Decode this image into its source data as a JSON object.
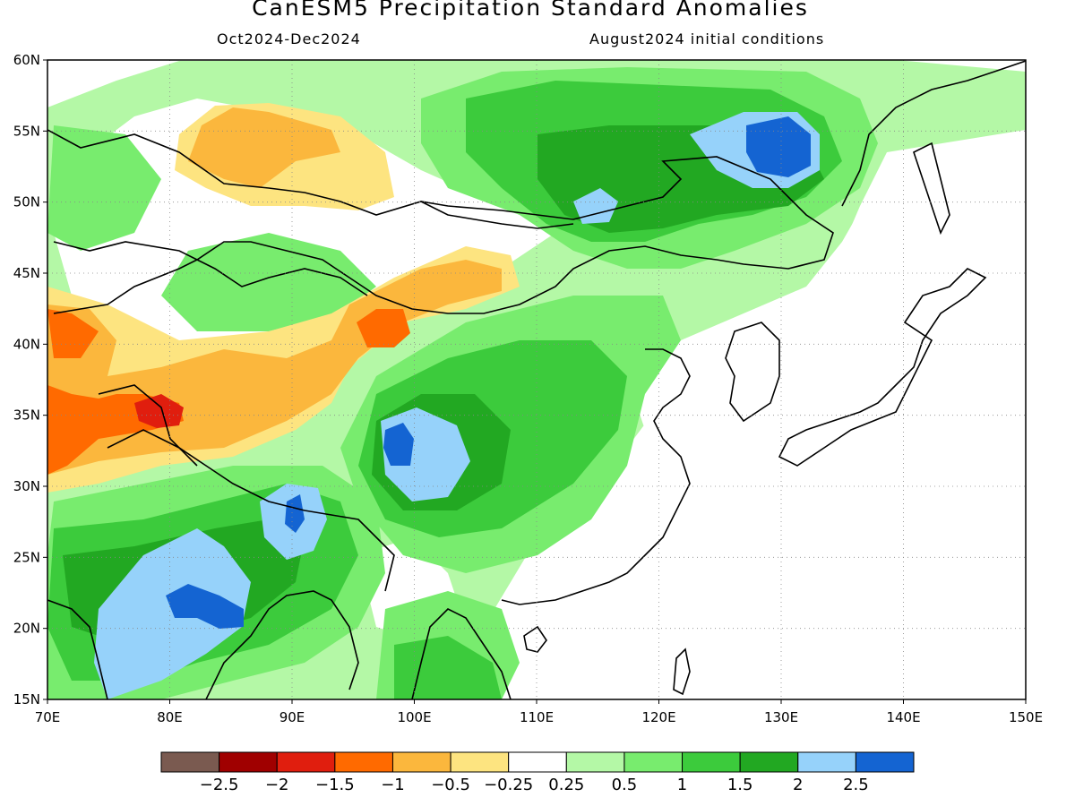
{
  "title": "CanESM5 Precipitation Standard Anomalies",
  "subtitle_left": "Oct2024-Dec2024",
  "subtitle_right": "August2024 initial conditions",
  "lat_ticks": [
    "60N",
    "55N",
    "50N",
    "45N",
    "40N",
    "35N",
    "30N",
    "25N",
    "20N",
    "15N"
  ],
  "lat_values": [
    60,
    55,
    50,
    45,
    40,
    35,
    30,
    25,
    20,
    15
  ],
  "lon_ticks": [
    "70E",
    "80E",
    "90E",
    "100E",
    "110E",
    "120E",
    "130E",
    "140E",
    "150E"
  ],
  "lon_values": [
    70,
    80,
    90,
    100,
    110,
    120,
    130,
    140,
    150
  ],
  "colorbar": {
    "colors": [
      "#7a5a50",
      "#a00000",
      "#e01e0e",
      "#ff6a00",
      "#fbb73d",
      "#fde480",
      "#ffffff",
      "#b4f8a6",
      "#78ec6e",
      "#3ccb3c",
      "#22a822",
      "#96d2fa",
      "#1464d2"
    ],
    "labels": [
      "−2.5",
      "−2",
      "−1.5",
      "−1",
      "−0.5",
      "−0.25",
      "0.25",
      "0.5",
      "1",
      "1.5",
      "2",
      "2.5"
    ]
  },
  "colors": {
    "orange": "#fbb73d",
    "dark_orange": "#ff6a00",
    "red": "#e01e0e",
    "yellow": "#fde480",
    "light_green": "#b4f8a6",
    "green": "#78ec6e",
    "mid_green": "#3ccb3c",
    "dark_green": "#22a822",
    "light_blue": "#96d2fa",
    "blue": "#1464d2"
  }
}
